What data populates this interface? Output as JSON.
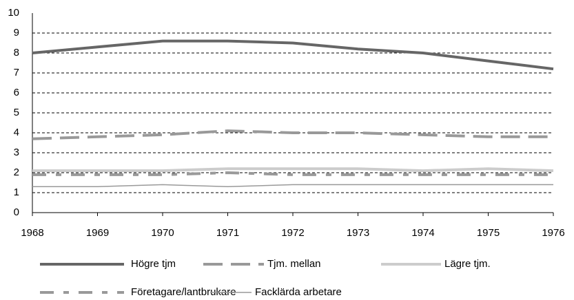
{
  "chart_data": {
    "type": "line",
    "x": [
      1968,
      1969,
      1970,
      1971,
      1972,
      1973,
      1974,
      1975,
      1976
    ],
    "xlim": [
      1968,
      1976
    ],
    "xticks": [
      1968,
      1969,
      1970,
      1971,
      1972,
      1973,
      1974,
      1975,
      1976
    ],
    "ylim": [
      0,
      10
    ],
    "yticks": [
      0,
      1,
      2,
      3,
      4,
      5,
      6,
      7,
      8,
      9,
      10
    ],
    "grid": true,
    "legend": "bottom",
    "series": [
      {
        "name": "Högre tjm",
        "color": "#666666",
        "values": [
          8.0,
          8.3,
          8.6,
          8.6,
          8.5,
          8.2,
          8.0,
          7.6,
          7.2
        ]
      },
      {
        "name": "Tjm. mellan",
        "color": "#999999",
        "values": [
          3.7,
          3.8,
          3.9,
          4.1,
          4.0,
          4.0,
          3.9,
          3.8,
          3.8
        ]
      },
      {
        "name": "Lägre tjm.",
        "color": "#cccccc",
        "values": [
          2.1,
          2.1,
          2.1,
          2.2,
          2.2,
          2.2,
          2.1,
          2.2,
          2.1
        ]
      },
      {
        "name": "Företagare/lantbrukare",
        "color": "#999999",
        "values": [
          1.9,
          1.9,
          1.9,
          2.0,
          1.9,
          1.9,
          1.9,
          1.9,
          1.9
        ]
      },
      {
        "name": "Facklärda arbetare",
        "color": "#999999",
        "values": [
          1.3,
          1.3,
          1.4,
          1.3,
          1.4,
          1.4,
          1.4,
          1.4,
          1.4
        ]
      }
    ]
  }
}
